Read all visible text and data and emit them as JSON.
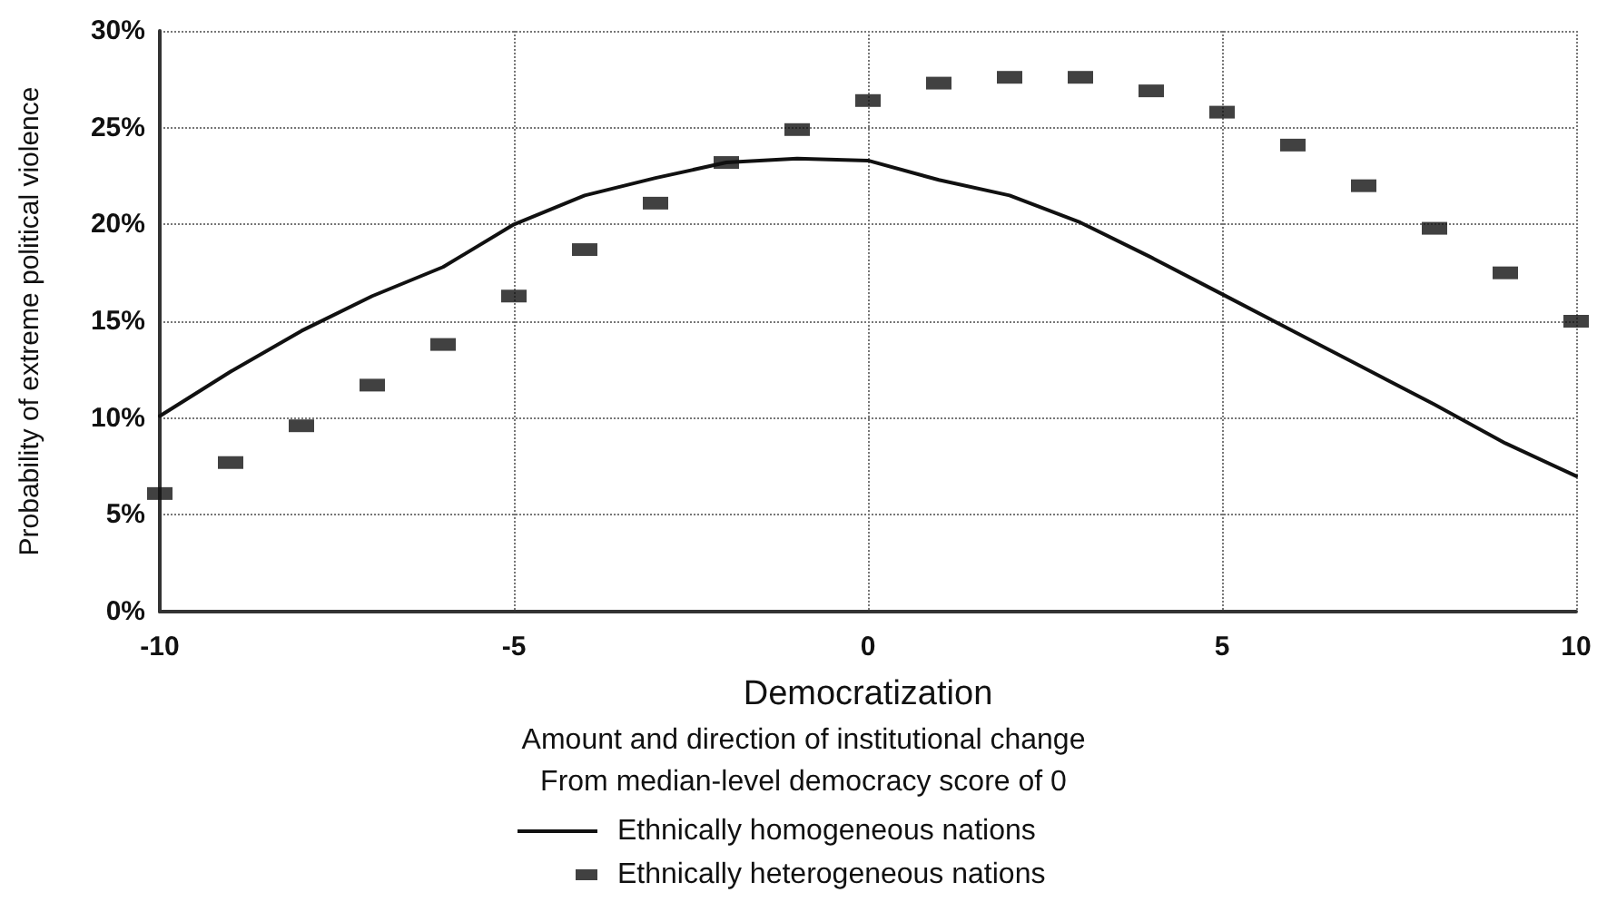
{
  "chart_data": {
    "type": "line",
    "xlabel": "Democratization",
    "ylabel": "Probability of extreme political violence",
    "annotations": [
      "Amount and direction of institutional change",
      "From median-level democracy score of 0"
    ],
    "x": [
      -10,
      -9,
      -8,
      -7,
      -6,
      -5,
      -4,
      -3,
      -2,
      -1,
      0,
      1,
      2,
      3,
      4,
      5,
      6,
      7,
      8,
      9,
      10
    ],
    "series": [
      {
        "name": "Ethnically homogeneous nations",
        "color": "#111111",
        "marker": "none",
        "line_style": "solid",
        "values": [
          10.1,
          12.4,
          14.5,
          16.3,
          17.8,
          20.0,
          21.5,
          22.4,
          23.2,
          23.4,
          23.3,
          22.3,
          21.5,
          20.1,
          18.3,
          16.4,
          14.5,
          12.6,
          10.7,
          8.7,
          7.0
        ]
      },
      {
        "name": "Ethnically heterogeneous nations",
        "type": "scatter",
        "color": "#111111",
        "marker": "square",
        "values": [
          6.1,
          7.7,
          9.6,
          11.7,
          13.8,
          16.3,
          18.7,
          21.1,
          23.2,
          24.9,
          26.4,
          27.3,
          27.6,
          27.6,
          26.9,
          25.8,
          24.1,
          22.0,
          19.8,
          17.5,
          15.0
        ]
      }
    ],
    "xlim": [
      -10,
      10
    ],
    "xticks": [
      -10,
      -5,
      0,
      5,
      10
    ],
    "ylim": [
      0,
      30
    ],
    "yticks": [
      {
        "value": 0,
        "label": "0%"
      },
      {
        "value": 5,
        "label": "5%"
      },
      {
        "value": 10,
        "label": "10%"
      },
      {
        "value": 15,
        "label": "15%"
      },
      {
        "value": 20,
        "label": "20%"
      },
      {
        "value": 25,
        "label": "25%"
      },
      {
        "value": 30,
        "label": "30%"
      }
    ],
    "grid": true,
    "legend": "bottom"
  }
}
